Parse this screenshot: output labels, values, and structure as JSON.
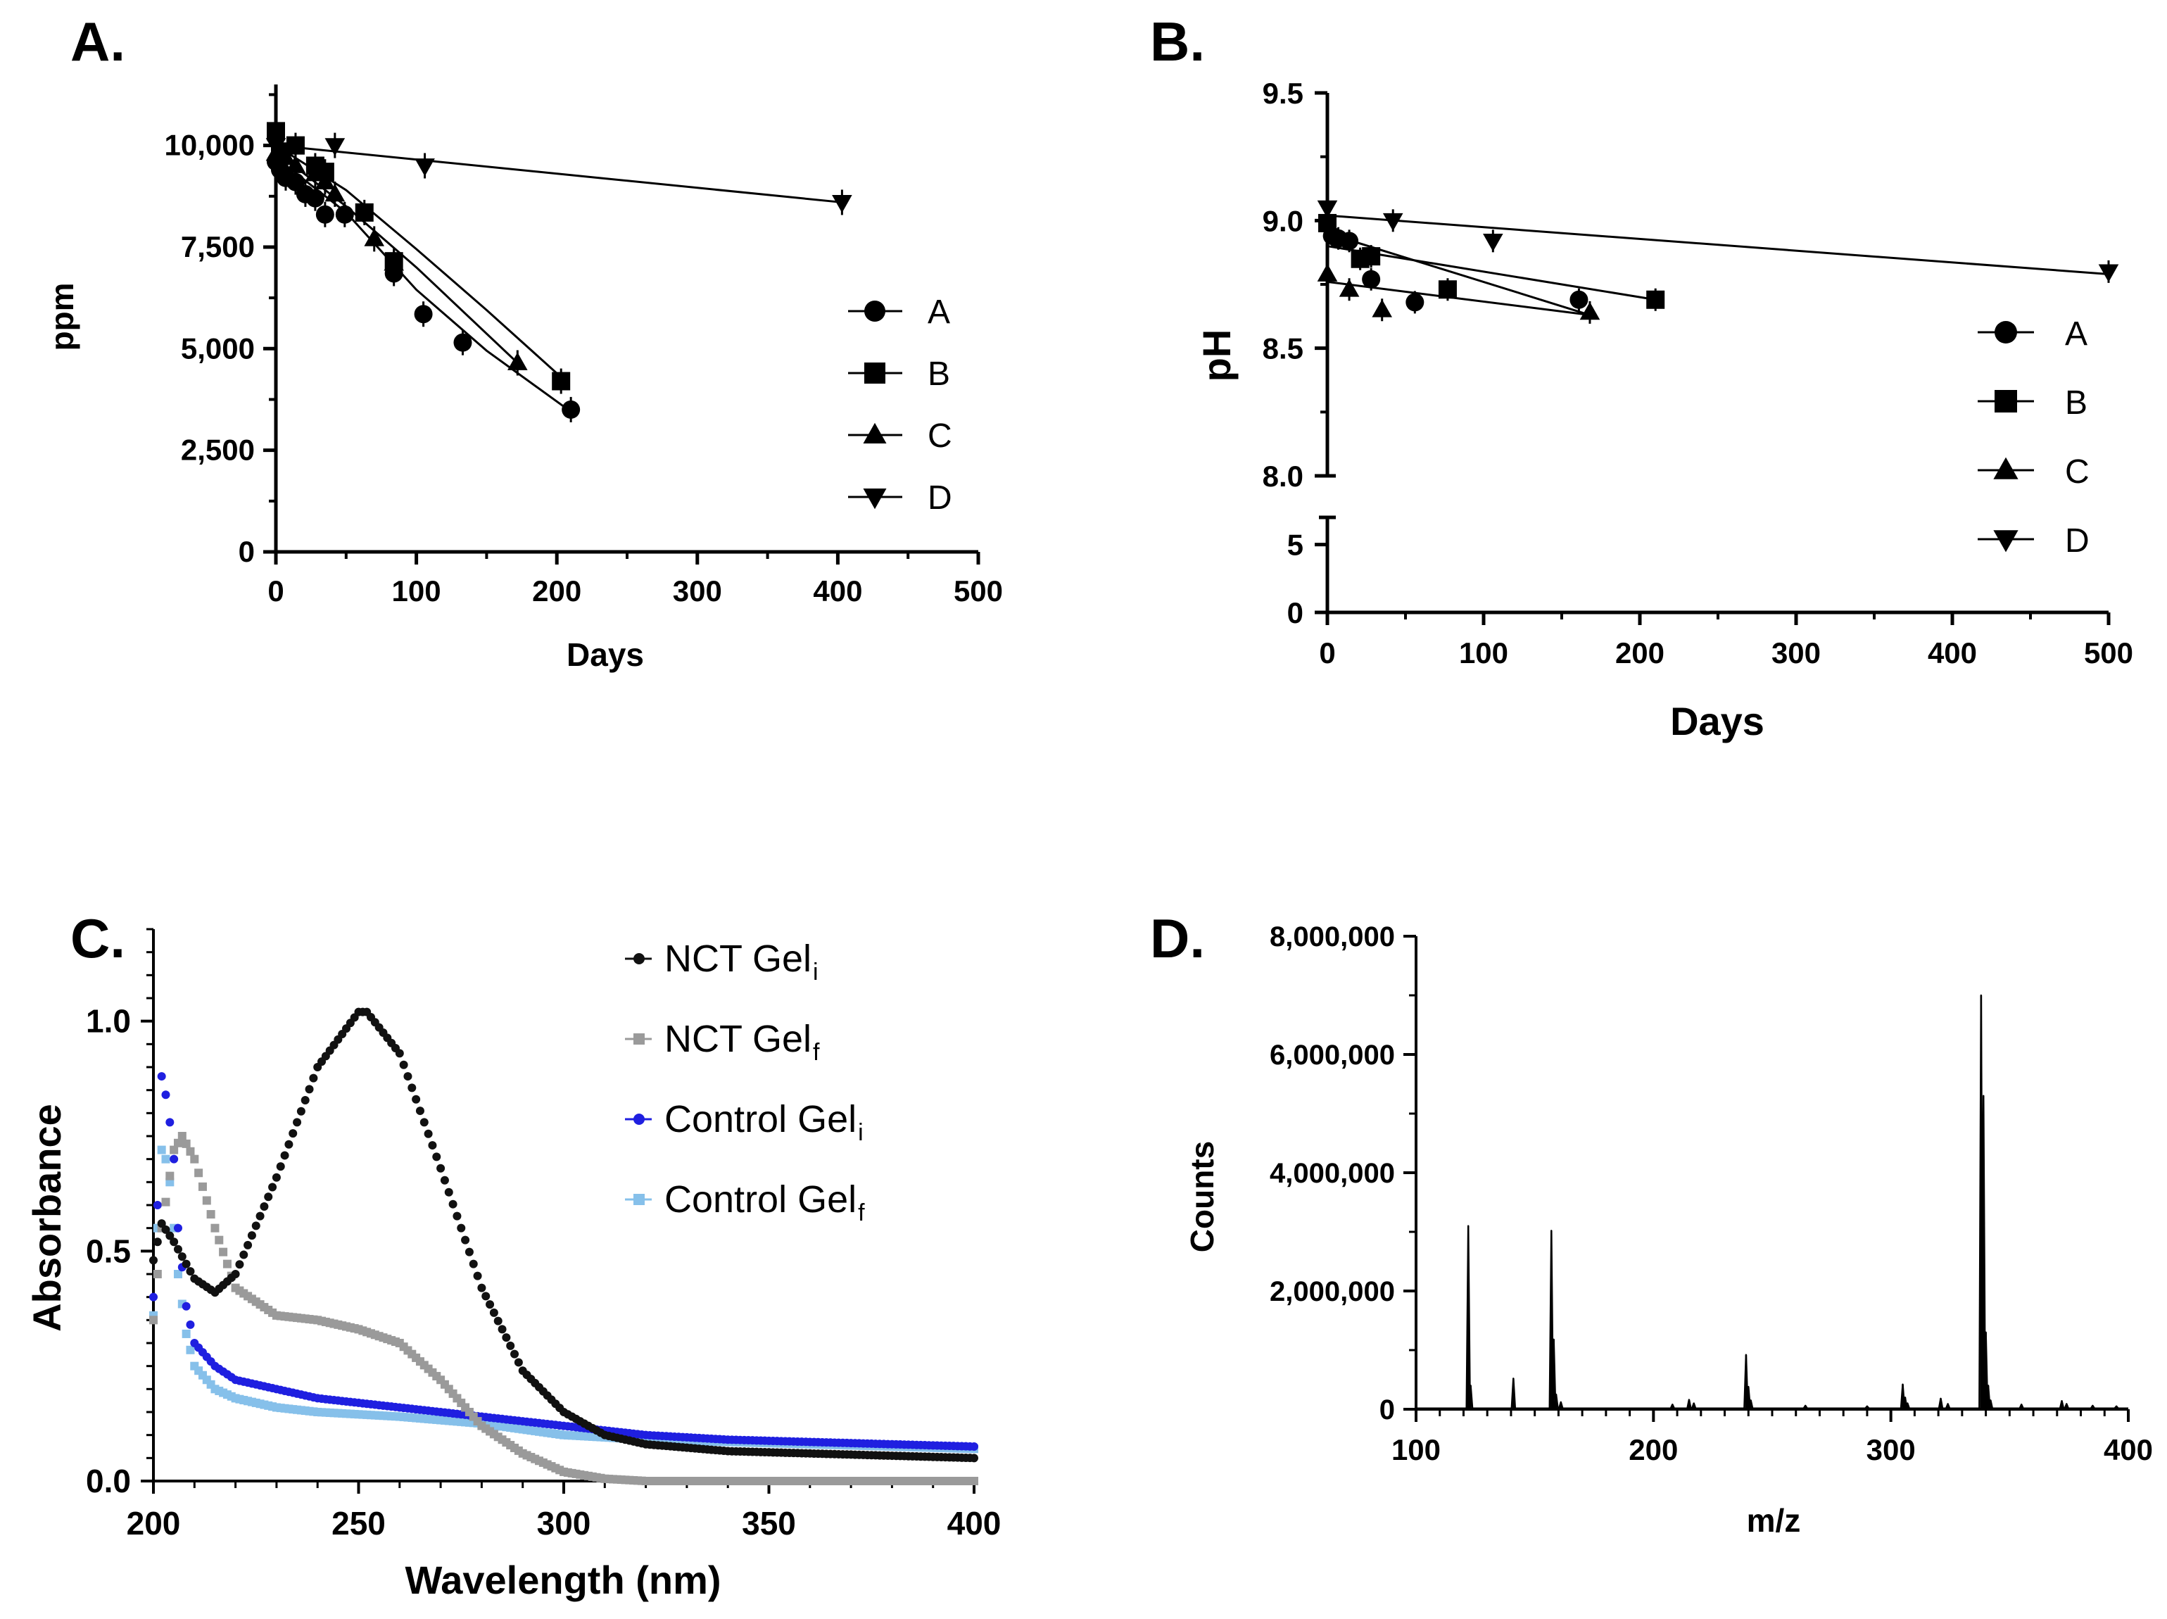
{
  "chart_data": [
    {
      "panel": "A.",
      "type": "scatter",
      "xlabel": "Days",
      "ylabel": "ppm",
      "xlim": [
        0,
        500
      ],
      "ylim": [
        0,
        11500
      ],
      "x_ticks": [
        0,
        100,
        200,
        300,
        400,
        500
      ],
      "y_ticks": [
        0,
        2500,
        5000,
        7500,
        10000
      ],
      "y_tick_labels": [
        "0",
        "2,500",
        "5,000",
        "7,500",
        "10,000"
      ],
      "legend": [
        "A",
        "B",
        "C",
        "D"
      ],
      "series": [
        {
          "name": "A",
          "marker": "circle",
          "x": [
            0,
            3,
            7,
            14,
            21,
            28,
            35,
            49,
            84,
            105,
            133,
            210
          ],
          "y": [
            9600,
            9400,
            9200,
            9100,
            8800,
            8700,
            8300,
            8300,
            6850,
            5850,
            5150,
            3500
          ],
          "fit": [
            [
              0,
              9700
            ],
            [
              50,
              8350
            ],
            [
              100,
              6450
            ],
            [
              150,
              4950
            ],
            [
              210,
              3450
            ]
          ]
        },
        {
          "name": "B",
          "marker": "square",
          "x": [
            0,
            3,
            14,
            28,
            35,
            63,
            84,
            203
          ],
          "y": [
            10350,
            9850,
            10000,
            9500,
            9350,
            8350,
            7150,
            4200
          ],
          "fit": [
            [
              0,
              10000
            ],
            [
              50,
              8900
            ],
            [
              100,
              7450
            ],
            [
              150,
              5950
            ],
            [
              203,
              4300
            ]
          ]
        },
        {
          "name": "C",
          "marker": "triangle-up",
          "x": [
            0,
            7,
            14,
            28,
            35,
            42,
            70,
            84,
            172
          ],
          "y": [
            9800,
            9700,
            9500,
            9300,
            9100,
            8800,
            7700,
            7100,
            4650
          ],
          "fit": [
            [
              0,
              9850
            ],
            [
              50,
              8500
            ],
            [
              100,
              7000
            ],
            [
              172,
              4650
            ]
          ]
        },
        {
          "name": "D",
          "marker": "triangle-down",
          "x": [
            0,
            42,
            106,
            403
          ],
          "y": [
            10000,
            10000,
            9500,
            8600
          ],
          "fit": [
            [
              0,
              10000
            ],
            [
              403,
              8600
            ]
          ]
        }
      ]
    },
    {
      "panel": "B.",
      "type": "scatter",
      "xlabel": "Days",
      "ylabel": "pH",
      "xlim": [
        0,
        500
      ],
      "ylim_top_segment": [
        8.0,
        9.5
      ],
      "ylim_bottom_segment": [
        0,
        7
      ],
      "x_ticks": [
        0,
        100,
        200,
        300,
        400,
        500
      ],
      "y_ticks": [
        0,
        5,
        8.0,
        8.5,
        9.0,
        9.5
      ],
      "y_tick_labels": [
        "0",
        "5",
        "8.0",
        "8.5",
        "9.0",
        "9.5"
      ],
      "legend": [
        "A",
        "B",
        "C",
        "D"
      ],
      "series": [
        {
          "name": "A",
          "marker": "circle",
          "x": [
            3,
            7,
            14,
            28,
            56,
            161
          ],
          "y": [
            8.94,
            8.93,
            8.92,
            8.77,
            8.68,
            8.69
          ],
          "fit": [
            [
              0,
              8.95
            ],
            [
              168,
              8.63
            ]
          ]
        },
        {
          "name": "B",
          "marker": "square",
          "x": [
            0,
            21,
            28,
            77,
            210
          ],
          "y": [
            8.99,
            8.85,
            8.86,
            8.73,
            8.69
          ],
          "fit": [
            [
              0,
              8.9
            ],
            [
              210,
              8.69
            ]
          ]
        },
        {
          "name": "C",
          "marker": "triangle-up",
          "x": [
            0,
            14,
            35,
            168
          ],
          "y": [
            8.79,
            8.73,
            8.65,
            8.64
          ],
          "fit": [
            [
              0,
              8.76
            ],
            [
              168,
              8.63
            ]
          ]
        },
        {
          "name": "D",
          "marker": "triangle-down",
          "x": [
            0,
            42,
            106,
            500
          ],
          "y": [
            9.05,
            9.0,
            8.92,
            8.8
          ],
          "fit": [
            [
              0,
              9.02
            ],
            [
              500,
              8.79
            ]
          ]
        }
      ]
    },
    {
      "panel": "C.",
      "type": "scatter",
      "xlabel": "Wavelength (nm)",
      "ylabel": "Absorbance",
      "xlim": [
        200,
        400
      ],
      "ylim": [
        0,
        1.2
      ],
      "x_ticks": [
        200,
        250,
        300,
        350,
        400
      ],
      "y_ticks": [
        0.0,
        0.5,
        1.0
      ],
      "y_tick_labels": [
        "0.0",
        "0.5",
        "1.0"
      ],
      "legend": [
        {
          "name": "NCT Gel",
          "sub": "i",
          "color": "#111111",
          "marker": "circle"
        },
        {
          "name": "NCT Gel",
          "sub": "f",
          "color": "#9a9a9a",
          "marker": "square"
        },
        {
          "name": "Control Gel",
          "sub": "i",
          "color": "#1f1fe0",
          "marker": "circle"
        },
        {
          "name": "Control Gel",
          "sub": "f",
          "color": "#86c0ea",
          "marker": "square"
        }
      ],
      "series": [
        {
          "name": "NCT Gel i",
          "color": "#111111",
          "marker": "circle",
          "x": [
            200,
            202,
            205,
            210,
            215,
            220,
            230,
            240,
            250,
            252,
            260,
            270,
            280,
            290,
            300,
            310,
            320,
            340,
            360,
            380,
            400
          ],
          "y": [
            0.48,
            0.56,
            0.52,
            0.44,
            0.41,
            0.45,
            0.66,
            0.9,
            1.02,
            1.02,
            0.93,
            0.68,
            0.42,
            0.24,
            0.15,
            0.1,
            0.08,
            0.065,
            0.06,
            0.055,
            0.05
          ]
        },
        {
          "name": "NCT Gel f",
          "color": "#9a9a9a",
          "marker": "square",
          "x": [
            200,
            202,
            205,
            207,
            210,
            215,
            220,
            230,
            240,
            250,
            260,
            270,
            280,
            290,
            300,
            310,
            320,
            340,
            360,
            380,
            400
          ],
          "y": [
            0.35,
            0.55,
            0.72,
            0.75,
            0.7,
            0.55,
            0.42,
            0.36,
            0.35,
            0.33,
            0.3,
            0.22,
            0.12,
            0.06,
            0.02,
            0.005,
            0.0,
            0.0,
            0.0,
            0.0,
            0.0
          ]
        },
        {
          "name": "Control Gel i",
          "color": "#1f1fe0",
          "marker": "circle",
          "x": [
            200,
            201,
            202,
            203,
            204,
            205,
            206,
            208,
            210,
            215,
            220,
            230,
            240,
            250,
            260,
            280,
            300,
            320,
            340,
            360,
            380,
            400
          ],
          "y": [
            0.4,
            0.6,
            0.88,
            0.84,
            0.78,
            0.7,
            0.55,
            0.38,
            0.3,
            0.25,
            0.22,
            0.2,
            0.18,
            0.17,
            0.16,
            0.14,
            0.12,
            0.1,
            0.09,
            0.085,
            0.08,
            0.075
          ]
        },
        {
          "name": "Control Gel f",
          "color": "#86c0ea",
          "marker": "square",
          "x": [
            200,
            201,
            202,
            203,
            204,
            205,
            206,
            208,
            210,
            215,
            220,
            230,
            240,
            250,
            260,
            280,
            300,
            320,
            340,
            360,
            380,
            400
          ],
          "y": [
            0.36,
            0.55,
            0.72,
            0.7,
            0.65,
            0.55,
            0.45,
            0.32,
            0.25,
            0.2,
            0.18,
            0.16,
            0.15,
            0.145,
            0.14,
            0.125,
            0.1,
            0.09,
            0.085,
            0.08,
            0.075,
            0.07
          ]
        }
      ]
    },
    {
      "panel": "D.",
      "type": "line",
      "xlabel": "m/z",
      "ylabel": "Counts",
      "xlim": [
        100,
        400
      ],
      "ylim": [
        0,
        8000000
      ],
      "x_ticks": [
        100,
        200,
        300,
        400
      ],
      "y_ticks": [
        0,
        2000000,
        4000000,
        6000000,
        8000000
      ],
      "y_tick_labels": [
        "0",
        "2,000,000",
        "4,000,000",
        "6,000,000",
        "8,000,000"
      ],
      "peaks": [
        {
          "mz": 122,
          "counts": 3100000
        },
        {
          "mz": 123,
          "counts": 400000
        },
        {
          "mz": 141,
          "counts": 520000
        },
        {
          "mz": 157,
          "counts": 3020000
        },
        {
          "mz": 158,
          "counts": 1180000
        },
        {
          "mz": 159,
          "counts": 250000
        },
        {
          "mz": 161,
          "counts": 120000
        },
        {
          "mz": 208,
          "counts": 80000
        },
        {
          "mz": 215,
          "counts": 160000
        },
        {
          "mz": 217,
          "counts": 100000
        },
        {
          "mz": 239,
          "counts": 920000
        },
        {
          "mz": 240,
          "counts": 380000
        },
        {
          "mz": 241,
          "counts": 150000
        },
        {
          "mz": 264,
          "counts": 60000
        },
        {
          "mz": 290,
          "counts": 50000
        },
        {
          "mz": 305,
          "counts": 420000
        },
        {
          "mz": 306,
          "counts": 200000
        },
        {
          "mz": 307,
          "counts": 100000
        },
        {
          "mz": 321,
          "counts": 180000
        },
        {
          "mz": 324,
          "counts": 90000
        },
        {
          "mz": 338,
          "counts": 7000000
        },
        {
          "mz": 339,
          "counts": 5300000
        },
        {
          "mz": 340,
          "counts": 1300000
        },
        {
          "mz": 341,
          "counts": 400000
        },
        {
          "mz": 342,
          "counts": 150000
        },
        {
          "mz": 355,
          "counts": 80000
        },
        {
          "mz": 372,
          "counts": 140000
        },
        {
          "mz": 374,
          "counts": 90000
        },
        {
          "mz": 385,
          "counts": 60000
        },
        {
          "mz": 395,
          "counts": 50000
        }
      ]
    }
  ]
}
